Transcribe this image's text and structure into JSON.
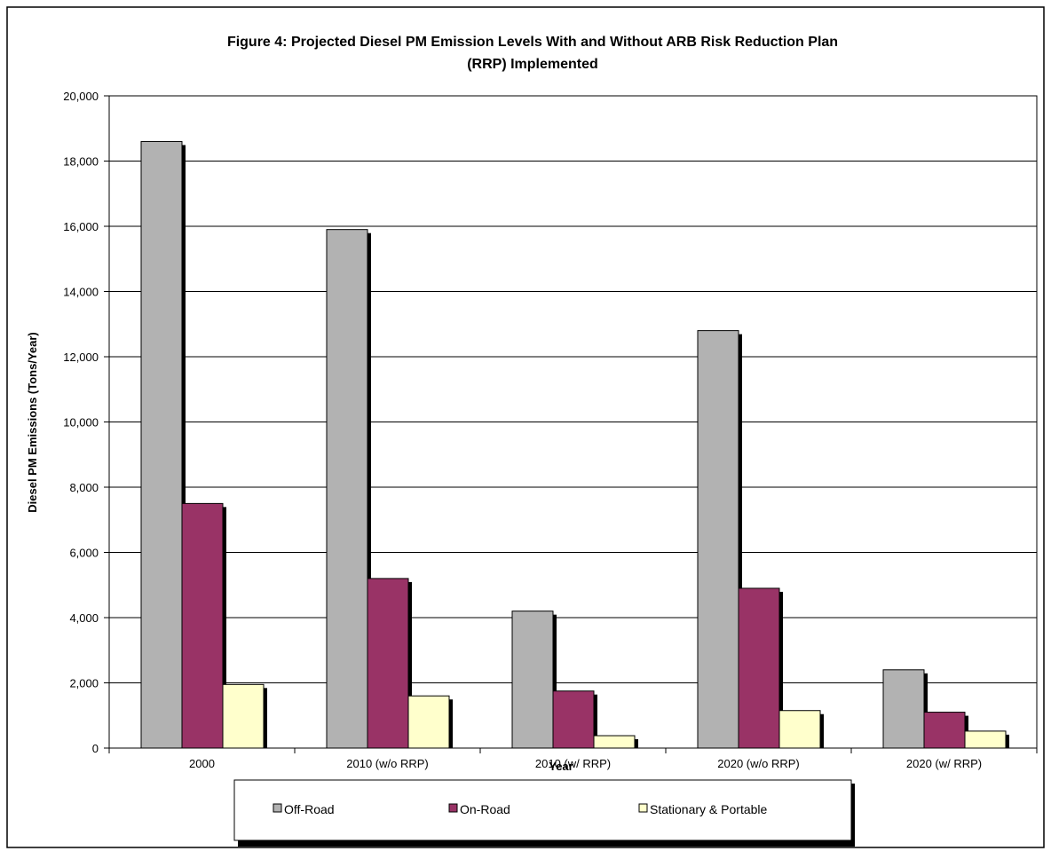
{
  "chart_data": {
    "type": "bar",
    "title_line1": "Figure 4:  Projected Diesel PM Emission Levels With and Without ARB Risk Reduction Plan",
    "title_line2": "(RRP) Implemented",
    "xlabel": "Year",
    "ylabel": "Diesel PM Emissions (Tons/Year)",
    "ylim": [
      0,
      20000
    ],
    "yticks": [
      0,
      2000,
      4000,
      6000,
      8000,
      10000,
      12000,
      14000,
      16000,
      18000,
      20000
    ],
    "ytick_labels": [
      "0",
      "2,000",
      "4,000",
      "6,000",
      "8,000",
      "10,000",
      "12,000",
      "14,000",
      "16,000",
      "18,000",
      "20,000"
    ],
    "grid": true,
    "legend_position": "bottom",
    "categories": [
      "2000",
      "2010 (w/o RRP)",
      "2010 (w/ RRP)",
      "2020 (w/o RRP)",
      "2020 (w/ RRP)"
    ],
    "series": [
      {
        "name": "Off-Road",
        "color": "#b2b2b2",
        "values": [
          18600,
          15900,
          4200,
          12800,
          2400
        ]
      },
      {
        "name": "On-Road",
        "color": "#993366",
        "values": [
          7500,
          5200,
          1750,
          4900,
          1100
        ]
      },
      {
        "name": "Stationary & Portable",
        "color": "#ffffcc",
        "values": [
          1950,
          1600,
          380,
          1150,
          520
        ]
      }
    ]
  }
}
